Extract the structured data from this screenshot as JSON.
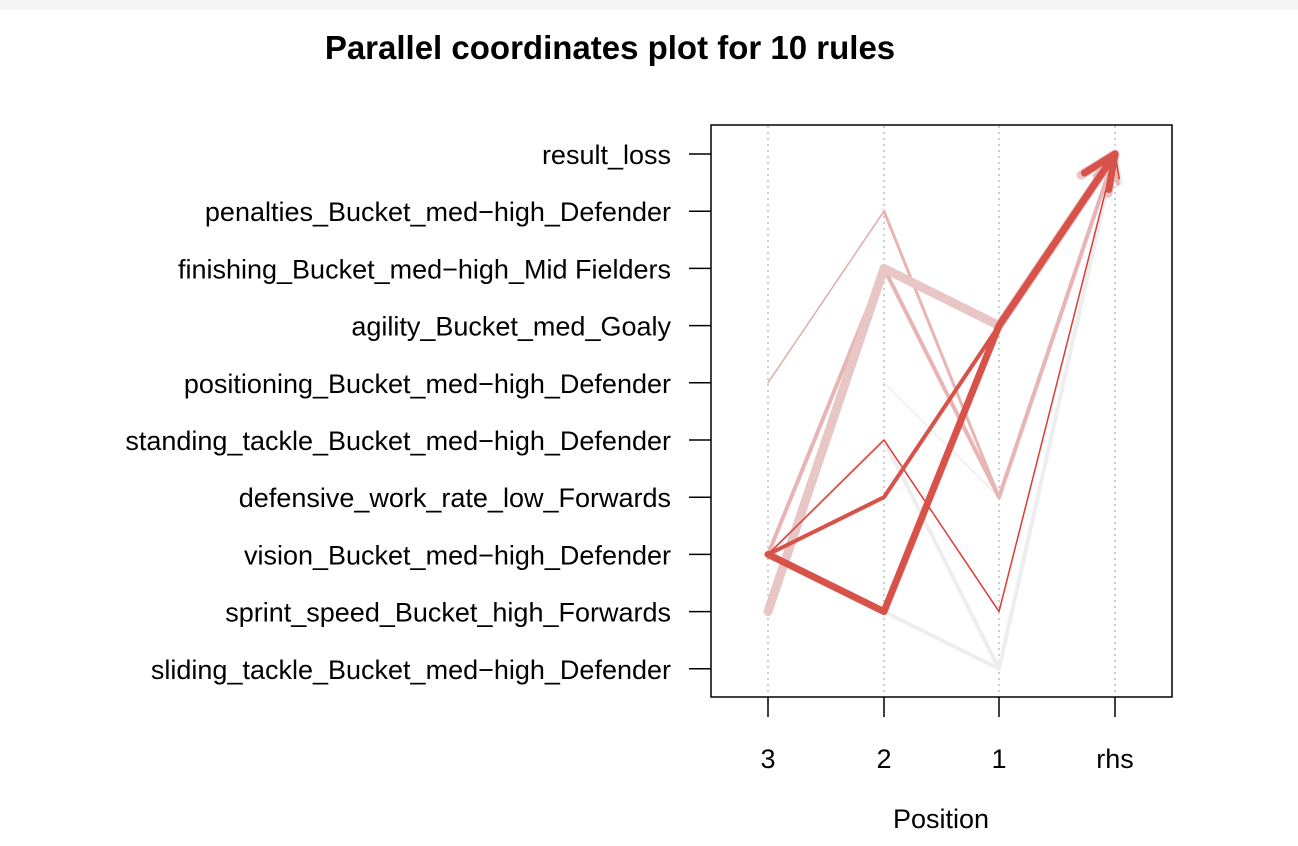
{
  "chart_data": {
    "type": "parallel_coordinates",
    "title": "Parallel coordinates plot for 10 rules",
    "xlabel": "Position",
    "x_axes": [
      "3",
      "2",
      "1",
      "rhs"
    ],
    "items": [
      "result_loss",
      "penalties_Bucket_med−high_Defender",
      "finishing_Bucket_med−high_Mid Fielders",
      "agility_Bucket_med_Goaly",
      "positioning_Bucket_med−high_Defender",
      "standing_tackle_Bucket_med−high_Defender",
      "defensive_work_rate_low_Forwards",
      "vision_Bucket_med−high_Defender",
      "sprint_speed_Bucket_high_Forwards",
      "sliding_tackle_Bucket_med−high_Defender"
    ],
    "grid": "vertical dotted lines at each position",
    "rules": [
      {
        "path": [
          null,
          "positioning_Bucket_med−high_Defender",
          "defensive_work_rate_low_Forwards",
          "result_loss"
        ],
        "color": "#ececec",
        "width": 1.5
      },
      {
        "path": [
          "vision_Bucket_med−high_Defender",
          "standing_tackle_Bucket_med−high_Defender",
          "sliding_tackle_Bucket_med−high_Defender",
          "result_loss"
        ],
        "color": "#eeeeee",
        "width": 4
      },
      {
        "path": [
          null,
          "sprint_speed_Bucket_high_Forwards",
          "sliding_tackle_Bucket_med−high_Defender",
          "result_loss"
        ],
        "color": "#eeeeee",
        "width": 4
      },
      {
        "path": [
          "positioning_Bucket_med−high_Defender",
          "penalties_Bucket_med−high_Defender",
          "defensive_work_rate_low_Forwards",
          "result_loss"
        ],
        "color": "#e3aaaa",
        "width": 1.5
      },
      {
        "path": [
          null,
          "penalties_Bucket_med−high_Defender",
          "defensive_work_rate_low_Forwards",
          "result_loss"
        ],
        "color": "#e8b4b4",
        "width": 3
      },
      {
        "path": [
          "vision_Bucket_med−high_Defender",
          "finishing_Bucket_med−high_Mid Fielders",
          "defensive_work_rate_low_Forwards",
          "result_loss"
        ],
        "color": "#e8b4b4",
        "width": 4
      },
      {
        "path": [
          "sprint_speed_Bucket_high_Forwards",
          "finishing_Bucket_med−high_Mid Fielders",
          "agility_Bucket_med_Goaly",
          "result_loss"
        ],
        "color": "#e8c6c6",
        "width": 9
      },
      {
        "path": [
          "vision_Bucket_med−high_Defender",
          "standing_tackle_Bucket_med−high_Defender",
          "sprint_speed_Bucket_high_Forwards",
          "result_loss"
        ],
        "color": "#de3a32",
        "width": 1.5
      },
      {
        "path": [
          "vision_Bucket_med−high_Defender",
          "defensive_work_rate_low_Forwards",
          "agility_Bucket_med_Goaly",
          "result_loss"
        ],
        "color": "#d9524a",
        "width": 4
      },
      {
        "path": [
          "vision_Bucket_med−high_Defender",
          "sprint_speed_Bucket_high_Forwards",
          "agility_Bucket_med_Goaly",
          "result_loss"
        ],
        "color": "#d9524a",
        "width": 7
      }
    ]
  }
}
